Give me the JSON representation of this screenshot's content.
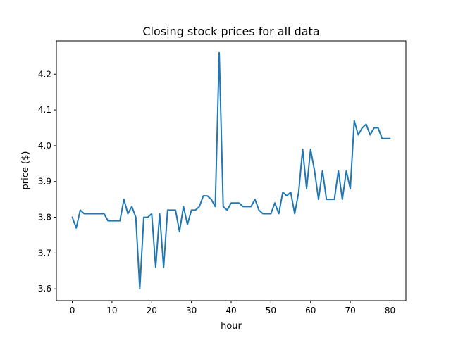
{
  "chart_data": {
    "type": "line",
    "title": "Closing stock prices for all data",
    "xlabel": "hour",
    "ylabel": "price ($)",
    "xlim": [
      -4,
      84
    ],
    "ylim": [
      3.567,
      4.293
    ],
    "xticks": [
      0,
      10,
      20,
      30,
      40,
      50,
      60,
      70,
      80
    ],
    "xtick_labels": [
      "0",
      "10",
      "20",
      "30",
      "40",
      "50",
      "60",
      "70",
      "80"
    ],
    "yticks": [
      3.6,
      3.7,
      3.8,
      3.9,
      4.0,
      4.1,
      4.2
    ],
    "ytick_labels": [
      "3.6",
      "3.7",
      "3.8",
      "3.9",
      "4.0",
      "4.1",
      "4.2"
    ],
    "grid": false,
    "legend": "none",
    "color": "#1f77b4",
    "series": [
      {
        "x": [
          0,
          1,
          2,
          3,
          4,
          5,
          6,
          7,
          8,
          9,
          10,
          11,
          12,
          13,
          14,
          15,
          16,
          17,
          18,
          19,
          20,
          21,
          22,
          23,
          24,
          25,
          26,
          27,
          28,
          29,
          30,
          31,
          32,
          33,
          34,
          35,
          36,
          37,
          38,
          39,
          40,
          41,
          42,
          43,
          44,
          45,
          46,
          47,
          48,
          49,
          50,
          51,
          52,
          53,
          54,
          55,
          56,
          57,
          58,
          59,
          60,
          61,
          62,
          63,
          64,
          65,
          66,
          67,
          68,
          69,
          70,
          71,
          72,
          73,
          74,
          75,
          76,
          77,
          78,
          79,
          80
        ],
        "values": [
          3.8,
          3.77,
          3.82,
          3.81,
          3.81,
          3.81,
          3.81,
          3.81,
          3.81,
          3.79,
          3.79,
          3.79,
          3.79,
          3.85,
          3.81,
          3.83,
          3.8,
          3.6,
          3.8,
          3.8,
          3.81,
          3.66,
          3.81,
          3.66,
          3.82,
          3.82,
          3.82,
          3.76,
          3.83,
          3.78,
          3.82,
          3.82,
          3.83,
          3.86,
          3.86,
          3.85,
          3.83,
          4.26,
          3.83,
          3.82,
          3.84,
          3.84,
          3.84,
          3.83,
          3.83,
          3.83,
          3.85,
          3.82,
          3.81,
          3.81,
          3.81,
          3.84,
          3.81,
          3.87,
          3.86,
          3.87,
          3.81,
          3.87,
          3.99,
          3.88,
          3.99,
          3.93,
          3.85,
          3.93,
          3.85,
          3.85,
          3.85,
          3.93,
          3.85,
          3.93,
          3.88,
          4.07,
          4.03,
          4.05,
          4.06,
          4.03,
          4.05,
          4.05,
          4.02,
          4.02,
          4.02
        ]
      }
    ]
  }
}
